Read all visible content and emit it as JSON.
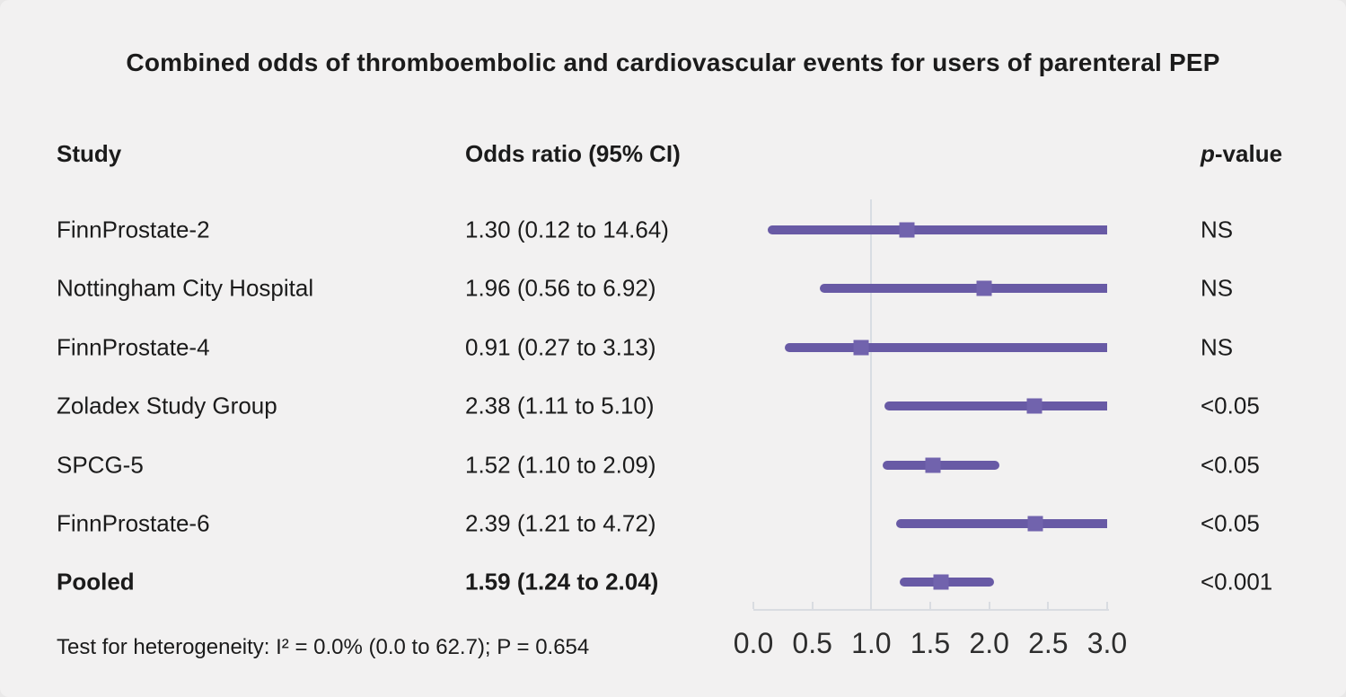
{
  "title": "Combined odds of thromboembolic and cardiovascular events for users of parenteral PEP",
  "columns": {
    "study": "Study",
    "odds_ratio": "Odds ratio (95% CI)",
    "p_value_italic": "p",
    "p_value_rest": "-value"
  },
  "footer": "Test for heterogeneity: I² = 0.0% (0.0 to 62.7); P = 0.654",
  "chart_data": {
    "type": "forest",
    "title": "Combined odds of thromboembolic and cardiovascular events for users of parenteral PEP",
    "xlabel": "Odds ratio",
    "x_axis": {
      "min": 0.0,
      "max": 3.0,
      "ticks": [
        0.0,
        0.5,
        1.0,
        1.5,
        2.0,
        2.5,
        3.0
      ],
      "reference_line": 1.0,
      "clip_max": 3.0
    },
    "rows": [
      {
        "study": "FinnProstate-2",
        "or": 1.3,
        "ci_low": 0.12,
        "ci_high": 14.64,
        "or_label": "1.30 (0.12 to 14.64)",
        "p": "NS",
        "bold": false
      },
      {
        "study": "Nottingham City Hospital",
        "or": 1.96,
        "ci_low": 0.56,
        "ci_high": 6.92,
        "or_label": "1.96 (0.56 to 6.92)",
        "p": "NS",
        "bold": false
      },
      {
        "study": "FinnProstate-4",
        "or": 0.91,
        "ci_low": 0.27,
        "ci_high": 3.13,
        "or_label": "0.91 (0.27 to 3.13)",
        "p": "NS",
        "bold": false
      },
      {
        "study": "Zoladex Study Group",
        "or": 2.38,
        "ci_low": 1.11,
        "ci_high": 5.1,
        "or_label": "2.38 (1.11 to 5.10)",
        "p": "<0.05",
        "bold": false
      },
      {
        "study": "SPCG-5",
        "or": 1.52,
        "ci_low": 1.1,
        "ci_high": 2.09,
        "or_label": "1.52 (1.10 to 2.09)",
        "p": "<0.05",
        "bold": false
      },
      {
        "study": "FinnProstate-6",
        "or": 2.39,
        "ci_low": 1.21,
        "ci_high": 4.72,
        "or_label": "2.39 (1.21 to 4.72)",
        "p": "<0.05",
        "bold": false
      },
      {
        "study": "Pooled",
        "or": 1.59,
        "ci_low": 1.24,
        "ci_high": 2.04,
        "or_label": "1.59 (1.24 to 2.04)",
        "p": "<0.001",
        "bold": true
      }
    ],
    "colors": {
      "ci_line": "#685aa5",
      "marker": "#7163ad",
      "reference_line": "#d8dde3",
      "axis": "#d9dce1",
      "background": "#f2f1f1"
    }
  }
}
